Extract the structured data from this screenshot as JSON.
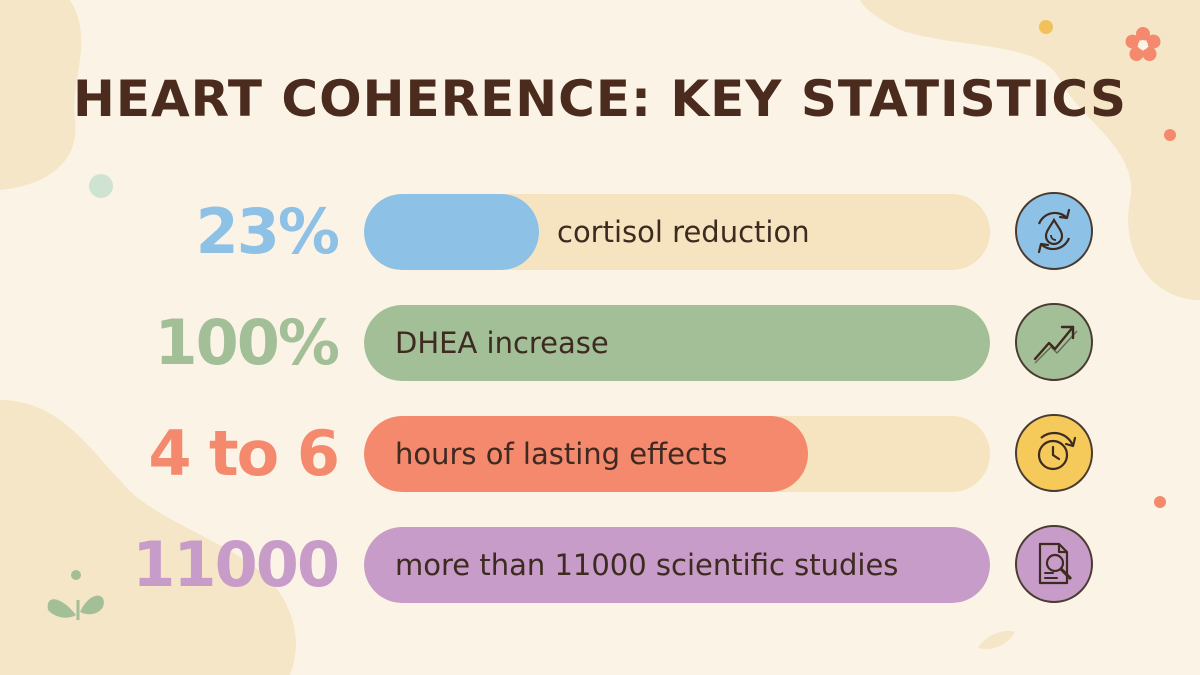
{
  "title": "HEART COHERENCE: KEY STATISTICS",
  "stats": [
    {
      "value": "23%",
      "label": "cortisol reduction",
      "fill": 0.28,
      "color": "#8ec1e6",
      "icon": "cortisol-cycle-icon"
    },
    {
      "value": "100%",
      "label": "DHEA increase",
      "fill": 1.0,
      "color": "#a3bf98",
      "icon": "trend-up-icon"
    },
    {
      "value": "4 to 6",
      "label": "hours of lasting effects",
      "fill": 0.71,
      "color": "#f4896d",
      "icon": "clock-icon"
    },
    {
      "value": "11000",
      "label": "more than 11000 scientific studies",
      "fill": 1.0,
      "color": "#c79cc9",
      "icon": "document-search-icon"
    }
  ],
  "colors": {
    "background": "#fbf4e6",
    "blob": "#f6e6c8",
    "title": "#4a2b1d",
    "track": "#f6e4c0",
    "text": "#3d2a20"
  }
}
